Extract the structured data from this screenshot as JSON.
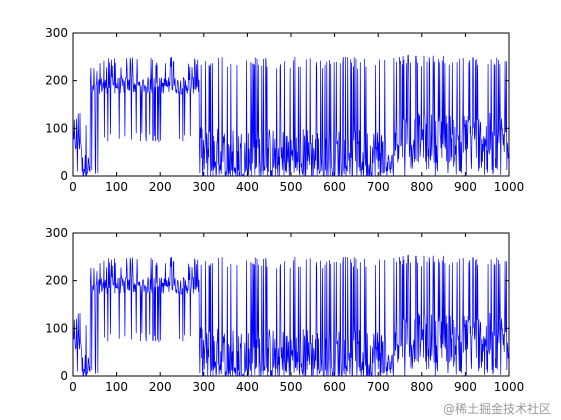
{
  "watermark": "@稀土掘金技术社区",
  "chart_data": [
    {
      "type": "line",
      "title": "",
      "xlabel": "",
      "ylabel": "",
      "xlim": [
        0,
        1000
      ],
      "ylim": [
        0,
        300
      ],
      "xticks": [
        0,
        100,
        200,
        300,
        400,
        500,
        600,
        700,
        800,
        900,
        1000
      ],
      "yticks": [
        0,
        100,
        200,
        300
      ],
      "grid": false,
      "line_color": "#0000ff",
      "segments": [
        {
          "x_range": [
            0,
            20
          ],
          "baseline": 70,
          "peak": 140,
          "trough": 0
        },
        {
          "x_range": [
            20,
            40
          ],
          "baseline": 20,
          "peak": 110,
          "trough": 0
        },
        {
          "x_range": [
            40,
            60
          ],
          "baseline": 180,
          "peak": 240,
          "trough": 0
        },
        {
          "x_range": [
            60,
            290
          ],
          "baseline": 190,
          "peak": 250,
          "trough": 70
        },
        {
          "x_range": [
            290,
            720
          ],
          "baseline": 40,
          "peak": 250,
          "trough": 0
        },
        {
          "x_range": [
            720,
            735
          ],
          "baseline": 20,
          "peak": 120,
          "trough": 0
        },
        {
          "x_range": [
            735,
            1000
          ],
          "baseline": 80,
          "peak": 255,
          "trough": 0
        }
      ]
    },
    {
      "type": "line",
      "title": "",
      "xlabel": "",
      "ylabel": "",
      "xlim": [
        0,
        1000
      ],
      "ylim": [
        0,
        300
      ],
      "xticks": [
        0,
        100,
        200,
        300,
        400,
        500,
        600,
        700,
        800,
        900,
        1000
      ],
      "yticks": [
        0,
        100,
        200,
        300
      ],
      "grid": false,
      "line_color": "#0000ff",
      "segments": [
        {
          "x_range": [
            0,
            20
          ],
          "baseline": 70,
          "peak": 140,
          "trough": 0
        },
        {
          "x_range": [
            20,
            40
          ],
          "baseline": 20,
          "peak": 110,
          "trough": 0
        },
        {
          "x_range": [
            40,
            60
          ],
          "baseline": 180,
          "peak": 240,
          "trough": 0
        },
        {
          "x_range": [
            60,
            290
          ],
          "baseline": 190,
          "peak": 250,
          "trough": 70
        },
        {
          "x_range": [
            290,
            720
          ],
          "baseline": 40,
          "peak": 250,
          "trough": 0
        },
        {
          "x_range": [
            720,
            735
          ],
          "baseline": 20,
          "peak": 120,
          "trough": 0
        },
        {
          "x_range": [
            735,
            1000
          ],
          "baseline": 80,
          "peak": 255,
          "trough": 0
        }
      ]
    }
  ]
}
